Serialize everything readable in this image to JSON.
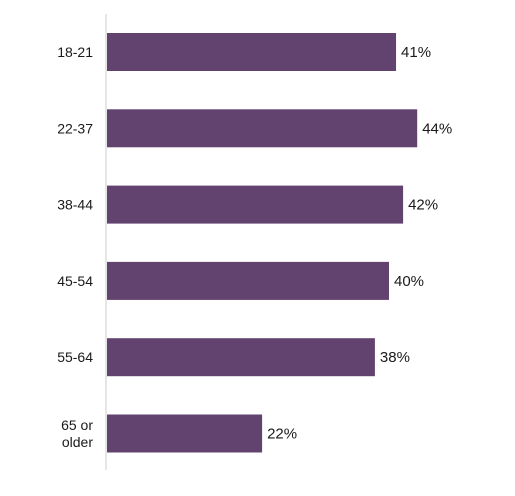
{
  "chart_data": {
    "type": "bar",
    "orientation": "horizontal",
    "title": "",
    "xlabel": "",
    "ylabel": "",
    "categories": [
      "18-21",
      "22-37",
      "38-44",
      "45-54",
      "55-64",
      "65 or older"
    ],
    "values": [
      41,
      44,
      42,
      40,
      38,
      22
    ],
    "value_labels": [
      "41%",
      "44%",
      "42%",
      "40%",
      "38%",
      "22%"
    ],
    "xlim": [
      0,
      50
    ],
    "grid": false,
    "legend": "none",
    "bar_color": "#62436f",
    "axis_color": "#cccccc",
    "text_color": "#1a1a1a"
  }
}
